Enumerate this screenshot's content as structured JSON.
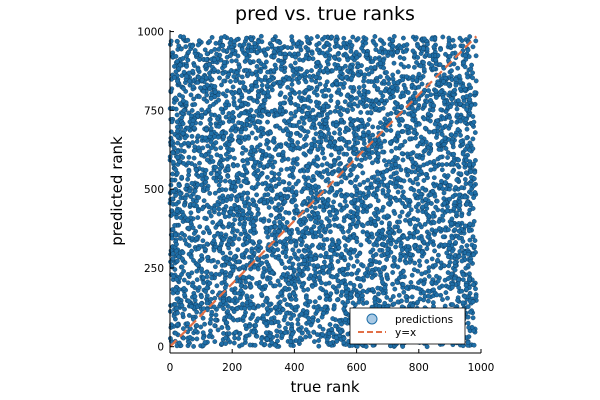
{
  "chart_data": {
    "type": "scatter",
    "title": "pred vs. true ranks",
    "xlabel": "true rank",
    "ylabel": "predicted rank",
    "xlim": [
      0,
      1000
    ],
    "ylim": [
      -20,
      1005
    ],
    "xticks": [
      0,
      200,
      400,
      600,
      800,
      1000
    ],
    "yticks": [
      0,
      250,
      500,
      750,
      1000
    ],
    "xtick_labels": [
      "0",
      "200",
      "400",
      "600",
      "800",
      "1000"
    ],
    "ytick_labels": [
      "0",
      "250",
      "500",
      "750",
      "1000"
    ],
    "grid": false,
    "legend_position": "bottom-right",
    "series": [
      {
        "name": "predictions",
        "kind": "scatter",
        "color": "#1f6fa8",
        "description_points": "~ dense cloud of points covering x from 0 to ~985 and y from 0 to ~985 (roughly one point per integer rank pair, appearing uniformly spread)",
        "x_range": [
          0,
          985
        ],
        "y_range": [
          0,
          985
        ]
      },
      {
        "name": "y=x",
        "kind": "line",
        "style": "dashed",
        "color": "#e26f46",
        "x": [
          0,
          985
        ],
        "y": [
          0,
          985
        ]
      }
    ]
  }
}
